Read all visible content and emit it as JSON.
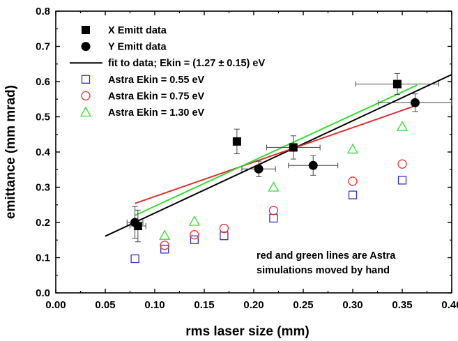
{
  "chart_data": {
    "type": "scatter",
    "title": "",
    "xlabel": "rms laser size (mm)",
    "ylabel": "emittance (mm mrad)",
    "xlim": [
      0.0,
      0.4
    ],
    "ylim": [
      0.0,
      0.8
    ],
    "x_ticks": [
      "0.00",
      "0.05",
      "0.10",
      "0.15",
      "0.20",
      "0.25",
      "0.30",
      "0.35",
      "0.40"
    ],
    "y_ticks": [
      "0.0",
      "0.1",
      "0.2",
      "0.3",
      "0.4",
      "0.5",
      "0.6",
      "0.7",
      "0.8"
    ],
    "grid": false,
    "legend_position": "top-left",
    "series": [
      {
        "name": "X Emitt data",
        "kind": "points",
        "marker": "filled-square",
        "color": "#000000",
        "points": [
          {
            "x": 0.083,
            "y": 0.19,
            "xerr": 0.008,
            "yerr": 0.045
          },
          {
            "x": 0.183,
            "y": 0.43,
            "xerr": 0.0,
            "yerr": 0.035
          },
          {
            "x": 0.24,
            "y": 0.413,
            "xerr": 0.027,
            "yerr": 0.033
          },
          {
            "x": 0.345,
            "y": 0.593,
            "xerr": 0.042,
            "yerr": 0.03
          }
        ]
      },
      {
        "name": "Y Emitt data",
        "kind": "points",
        "marker": "filled-circle",
        "color": "#000000",
        "points": [
          {
            "x": 0.08,
            "y": 0.2,
            "xerr": 0.008,
            "yerr": 0.045
          },
          {
            "x": 0.205,
            "y": 0.352,
            "xerr": 0.017,
            "yerr": 0.022
          },
          {
            "x": 0.26,
            "y": 0.362,
            "xerr": 0.025,
            "yerr": 0.028
          },
          {
            "x": 0.363,
            "y": 0.54,
            "xerr": 0.037,
            "yerr": 0.025
          }
        ]
      },
      {
        "name": "fit to data; Ekin = (1.27 ± 0.15) eV",
        "kind": "line",
        "color": "#000000",
        "points": [
          {
            "x": 0.05,
            "y": 0.161
          },
          {
            "x": 0.4,
            "y": 0.62
          }
        ]
      },
      {
        "name": "Astra Ekin = 0.55 eV",
        "kind": "points",
        "marker": "open-square",
        "color": "#3333cc",
        "points": [
          {
            "x": 0.08,
            "y": 0.097
          },
          {
            "x": 0.11,
            "y": 0.124
          },
          {
            "x": 0.14,
            "y": 0.151
          },
          {
            "x": 0.17,
            "y": 0.162
          },
          {
            "x": 0.22,
            "y": 0.212
          },
          {
            "x": 0.3,
            "y": 0.278
          },
          {
            "x": 0.35,
            "y": 0.32
          }
        ]
      },
      {
        "name": "Astra Ekin = 0.75 eV",
        "kind": "points",
        "marker": "open-circle",
        "color": "#e03030",
        "points": [
          {
            "x": 0.11,
            "y": 0.135
          },
          {
            "x": 0.14,
            "y": 0.165
          },
          {
            "x": 0.17,
            "y": 0.183
          },
          {
            "x": 0.22,
            "y": 0.234
          },
          {
            "x": 0.3,
            "y": 0.317
          },
          {
            "x": 0.35,
            "y": 0.366
          }
        ]
      },
      {
        "name": "Astra Ekin = 1.30 eV",
        "kind": "points",
        "marker": "open-triangle",
        "color": "#33dd33",
        "points": [
          {
            "x": 0.11,
            "y": 0.163
          },
          {
            "x": 0.14,
            "y": 0.203
          },
          {
            "x": 0.22,
            "y": 0.3
          },
          {
            "x": 0.3,
            "y": 0.408
          },
          {
            "x": 0.35,
            "y": 0.472
          }
        ]
      },
      {
        "kind": "line",
        "color": "#e03030",
        "points": [
          {
            "x": 0.08,
            "y": 0.254
          },
          {
            "x": 0.365,
            "y": 0.533
          }
        ]
      },
      {
        "kind": "line",
        "color": "#33dd33",
        "points": [
          {
            "x": 0.08,
            "y": 0.22
          },
          {
            "x": 0.365,
            "y": 0.59
          }
        ]
      }
    ],
    "annotation": [
      "red and green lines are Astra",
      "simulations moved by hand"
    ]
  }
}
